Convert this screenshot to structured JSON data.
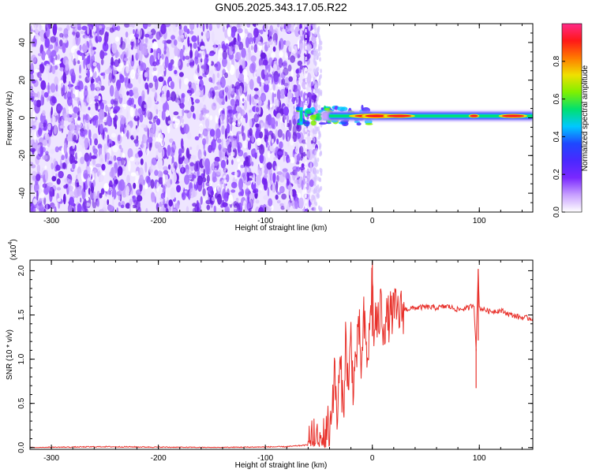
{
  "figure": {
    "title": "GN05.2025.343.17.05.R22"
  },
  "chart_data": [
    {
      "type": "heatmap",
      "xlabel": "Height of straight line (km)",
      "ylabel": "Frequency (Hz)",
      "xlim": [
        -320,
        150
      ],
      "ylim": [
        -50,
        50
      ],
      "xticks": [
        -300,
        -200,
        -100,
        0,
        100
      ],
      "yticks": [
        -40,
        -20,
        0,
        20,
        40
      ],
      "grid": false,
      "noise_region_x": [
        -320,
        -52
      ],
      "signal_line": {
        "frequency": 1,
        "x_start": -70,
        "x_end": 150,
        "description_amplitude": [
          0.3,
          0.5,
          0.9
        ]
      },
      "colorbar": {
        "label": "Normalized spectral amplitude",
        "range": [
          0.0,
          1.0
        ],
        "ticks": [
          "0.0",
          "0.2",
          "0.4",
          "0.6",
          "0.8"
        ],
        "tick_values": [
          0.0,
          0.2,
          0.4,
          0.6,
          0.8
        ],
        "colors": [
          "#ffffff",
          "#c8a0ff",
          "#7a28ff",
          "#4a28ff",
          "#1e48ff",
          "#00c8ff",
          "#00e070",
          "#80f000",
          "#f0e000",
          "#ff7a00",
          "#ff1818",
          "#ff2a88"
        ]
      }
    },
    {
      "type": "line",
      "xlabel": "Height of straight line (km)",
      "ylabel": "SNR (10 * v/v)",
      "scale_label": "(x10",
      "scale_exp": "4",
      "xlim": [
        -320,
        150
      ],
      "ylim": [
        -0.02,
        2.12
      ],
      "xticks": [
        -300,
        -200,
        -100,
        0,
        100
      ],
      "yticks": [
        "0.0",
        "0.5",
        "1.0",
        "1.5",
        "2.0"
      ],
      "ytick_values": [
        0.0,
        0.5,
        1.0,
        1.5,
        2.0
      ],
      "grid": false,
      "color": "#e8302a",
      "series": [
        {
          "x": [
            -320,
            -250,
            -150,
            -80,
            -60,
            -55,
            -50,
            -45,
            -42,
            -40,
            -38,
            -35,
            -33,
            -30,
            -27,
            -25,
            -22,
            -20,
            -18,
            -15,
            -12,
            -10,
            -8,
            -5,
            -3,
            -1,
            0,
            1,
            3,
            5,
            8,
            10,
            15,
            20,
            25,
            30,
            40,
            50,
            60,
            70,
            80,
            90,
            95,
            97,
            99,
            100,
            105,
            110,
            120,
            130,
            140,
            150
          ],
          "y": [
            0.0,
            0.01,
            0.0,
            0.01,
            0.03,
            0.06,
            0.0,
            0.1,
            0.28,
            0.12,
            0.5,
            0.82,
            0.3,
            0.95,
            0.4,
            1.22,
            0.62,
            1.3,
            0.7,
            1.05,
            1.3,
            0.85,
            1.45,
            1.0,
            1.2,
            1.68,
            2.1,
            1.2,
            1.5,
            1.32,
            1.62,
            1.4,
            1.46,
            1.55,
            1.52,
            1.56,
            1.58,
            1.59,
            1.58,
            1.6,
            1.56,
            1.58,
            1.62,
            1.12,
            2.02,
            1.58,
            1.56,
            1.54,
            1.55,
            1.5,
            1.47,
            1.46
          ]
        }
      ]
    }
  ]
}
